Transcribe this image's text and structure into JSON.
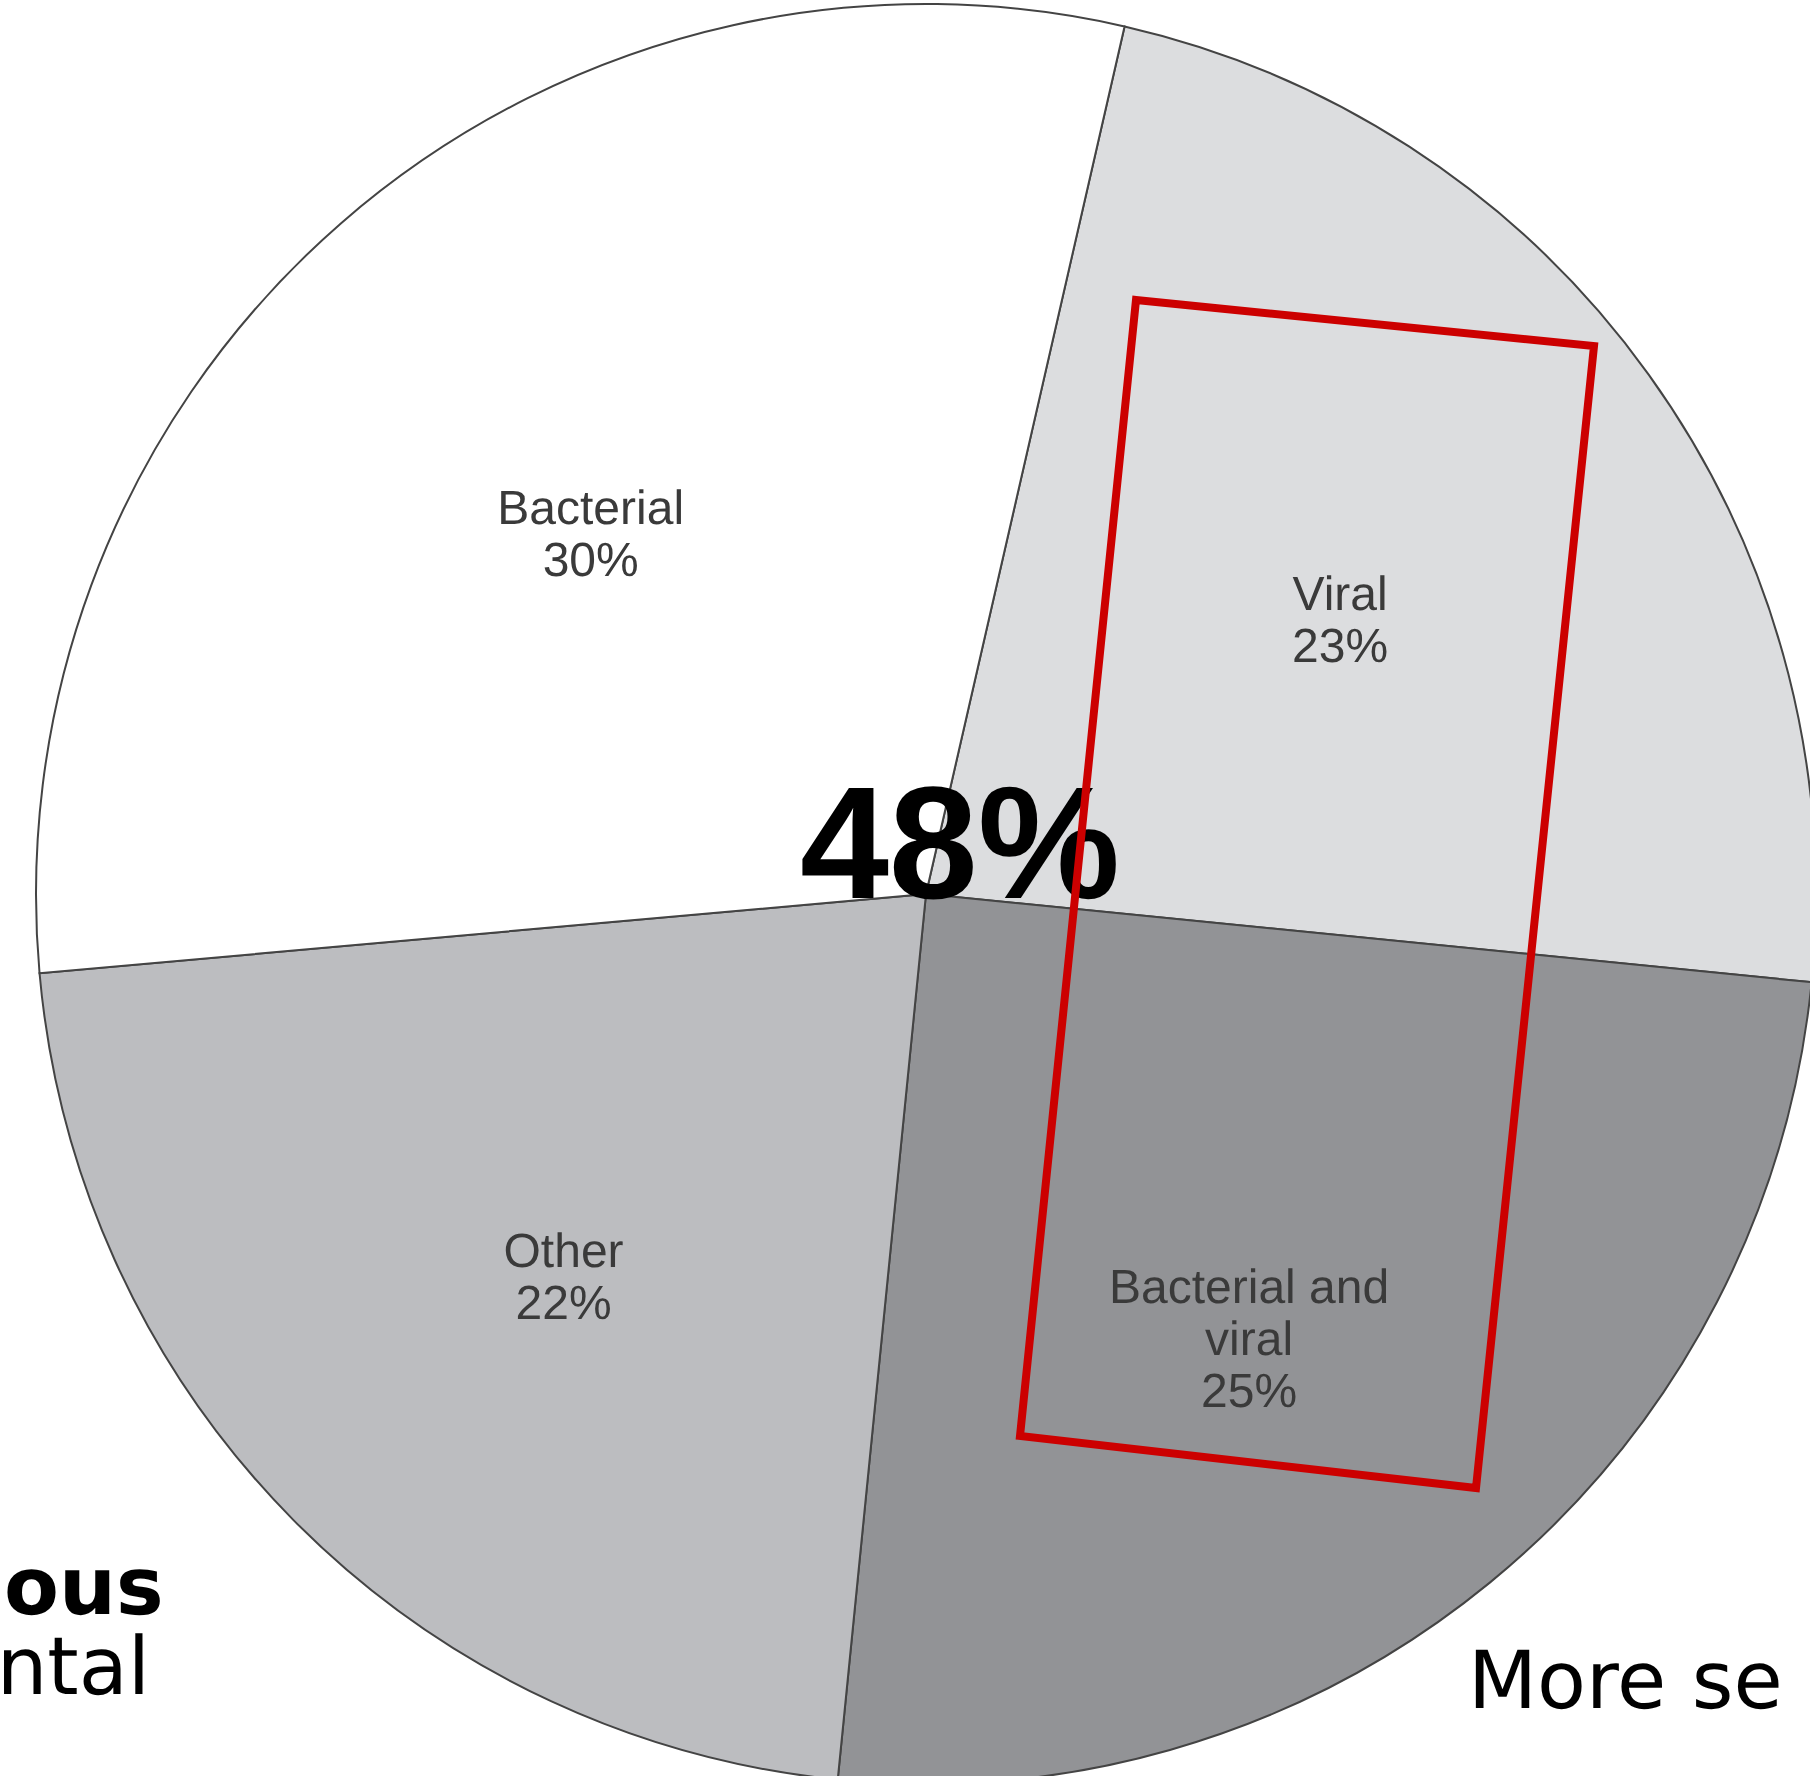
{
  "chart_data": {
    "type": "pie",
    "categories": [
      "Viral",
      "Bacterial and viral",
      "Other",
      "Bacterial"
    ],
    "values": [
      23,
      25,
      22,
      30
    ],
    "value_labels": [
      "23%",
      "25%",
      "22%",
      "30%"
    ],
    "colors": [
      "#dcdddf",
      "#929396",
      "#bcbdc0",
      "#ffffff"
    ],
    "annotations": [
      "48%",
      "ous",
      "ntal",
      "More se"
    ]
  }
}
